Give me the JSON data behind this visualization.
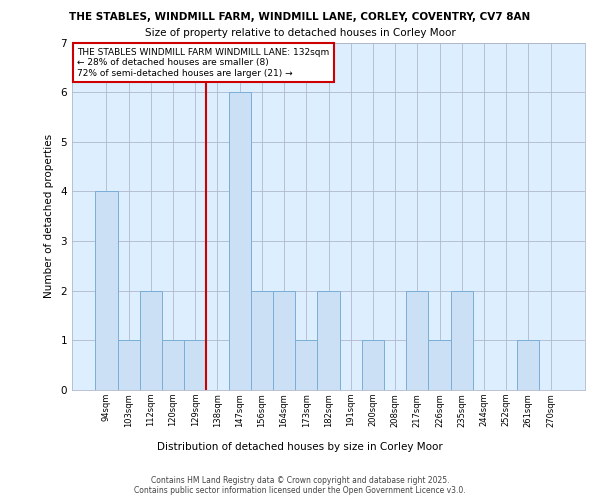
{
  "title1": "THE STABLES, WINDMILL FARM, WINDMILL LANE, CORLEY, COVENTRY, CV7 8AN",
  "title2": "Size of property relative to detached houses in Corley Moor",
  "xlabel": "Distribution of detached houses by size in Corley Moor",
  "ylabel": "Number of detached properties",
  "categories": [
    "94sqm",
    "103sqm",
    "112sqm",
    "120sqm",
    "129sqm",
    "138sqm",
    "147sqm",
    "156sqm",
    "164sqm",
    "173sqm",
    "182sqm",
    "191sqm",
    "200sqm",
    "208sqm",
    "217sqm",
    "226sqm",
    "235sqm",
    "244sqm",
    "252sqm",
    "261sqm",
    "270sqm"
  ],
  "values": [
    4,
    1,
    2,
    1,
    1,
    0,
    6,
    2,
    2,
    1,
    2,
    0,
    1,
    0,
    2,
    1,
    2,
    0,
    0,
    1,
    0
  ],
  "bar_color": "#cce0f5",
  "bar_edge_color": "#7aaed6",
  "red_line_x": 4.5,
  "annotation_text": "THE STABLES WINDMILL FARM WINDMILL LANE: 132sqm\n← 28% of detached houses are smaller (8)\n72% of semi-detached houses are larger (21) →",
  "annotation_box_color": "#ffffff",
  "annotation_box_edge": "#cc0000",
  "red_line_color": "#cc0000",
  "footer": "Contains HM Land Registry data © Crown copyright and database right 2025.\nContains public sector information licensed under the Open Government Licence v3.0.",
  "ylim": [
    0,
    7
  ],
  "yticks": [
    0,
    1,
    2,
    3,
    4,
    5,
    6,
    7
  ],
  "plot_bg_color": "#ddeeff",
  "grid_color": "#b0b8cc"
}
